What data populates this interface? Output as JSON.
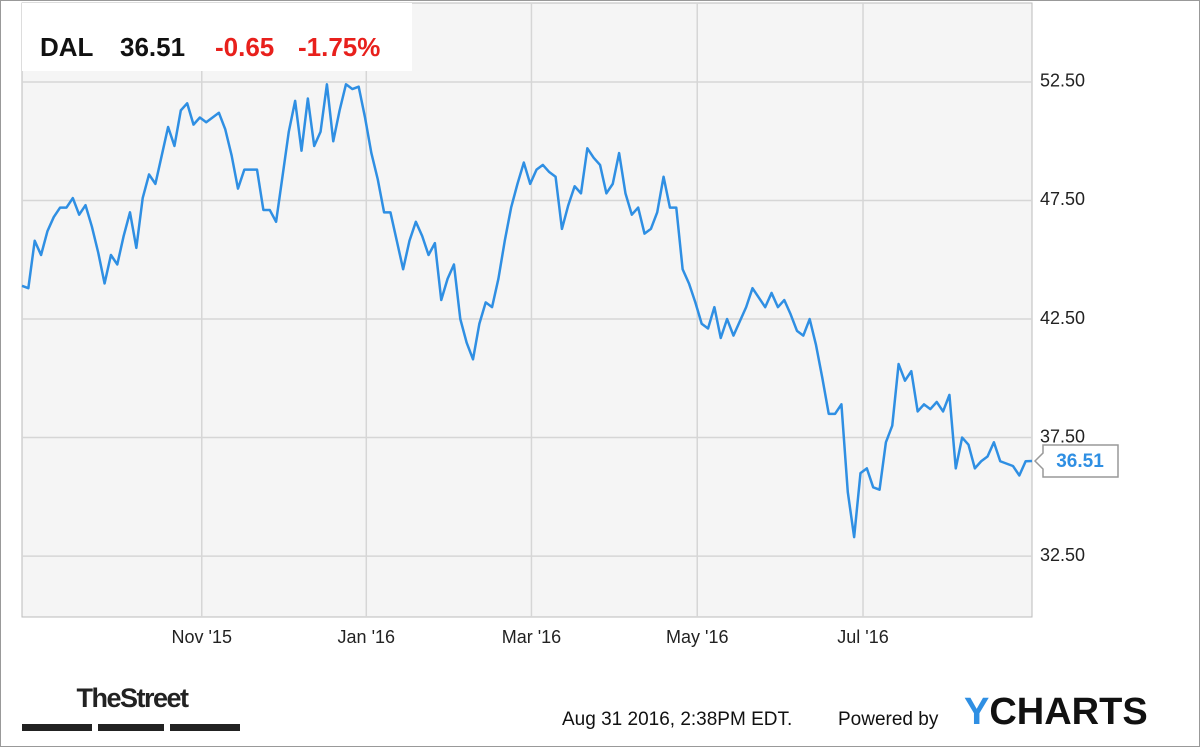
{
  "chart_data": {
    "type": "line",
    "header": {
      "ticker": "DAL",
      "price": "36.51",
      "change": "-0.65",
      "change_percent": "-1.75%"
    },
    "series": [
      {
        "name": "DAL",
        "color": "#2f8fe3",
        "values": [
          43.9,
          43.8,
          45.8,
          45.2,
          46.2,
          46.8,
          47.2,
          47.2,
          47.6,
          46.9,
          47.3,
          46.4,
          45.3,
          44.0,
          45.2,
          44.8,
          46.0,
          47.0,
          45.5,
          47.6,
          48.6,
          48.2,
          49.4,
          50.6,
          49.8,
          51.3,
          51.6,
          50.7,
          51.0,
          50.8,
          51.0,
          51.2,
          50.5,
          49.4,
          48.0,
          48.8,
          48.8,
          48.8,
          47.1,
          47.1,
          46.6,
          48.5,
          50.4,
          51.7,
          49.6,
          51.8,
          49.8,
          50.4,
          52.4,
          50.0,
          51.3,
          52.4,
          52.2,
          52.3,
          51.0,
          49.5,
          48.4,
          47.0,
          47.0,
          45.8,
          44.6,
          45.8,
          46.6,
          46.0,
          45.2,
          45.7,
          43.3,
          44.2,
          44.8,
          42.5,
          41.5,
          40.8,
          42.3,
          43.2,
          43.0,
          44.2,
          45.8,
          47.2,
          48.2,
          49.1,
          48.2,
          48.8,
          49.0,
          48.7,
          48.5,
          46.3,
          47.3,
          48.1,
          47.8,
          49.7,
          49.3,
          49.0,
          47.8,
          48.2,
          49.5,
          47.8,
          46.9,
          47.2,
          46.1,
          46.3,
          47.0,
          48.5,
          47.2,
          47.2,
          44.6,
          44.0,
          43.2,
          42.3,
          42.1,
          43.0,
          41.7,
          42.5,
          41.8,
          42.4,
          43.0,
          43.8,
          43.4,
          43.0,
          43.6,
          43.0,
          43.3,
          42.7,
          42.0,
          41.8,
          42.5,
          41.4,
          40.0,
          38.5,
          38.5,
          38.9,
          35.2,
          33.3,
          36.0,
          36.2,
          35.4,
          35.3,
          37.3,
          38.0,
          40.6,
          39.9,
          40.3,
          38.6,
          38.9,
          38.7,
          39.0,
          38.6,
          39.3,
          36.2,
          37.5,
          37.2,
          36.2,
          36.5,
          36.7,
          37.3,
          36.5,
          36.4,
          36.3,
          35.9,
          36.5,
          36.51
        ]
      }
    ],
    "xlim": [
      0,
      159
    ],
    "xticks": [
      {
        "value": 28.3,
        "label": "Nov '15"
      },
      {
        "value": 54.2,
        "label": "Jan '16"
      },
      {
        "value": 80.2,
        "label": "Mar '16"
      },
      {
        "value": 106.3,
        "label": "May '16"
      },
      {
        "value": 132.4,
        "label": "Jul '16"
      }
    ],
    "ylim": [
      29.93,
      55.83
    ],
    "yticks": [
      {
        "value": 32.5,
        "label": "32.50"
      },
      {
        "value": 37.5,
        "label": "37.50"
      },
      {
        "value": 42.5,
        "label": "42.50"
      },
      {
        "value": 47.5,
        "label": "47.50"
      },
      {
        "value": 52.5,
        "label": "52.50"
      }
    ],
    "grid": true,
    "footer": {
      "source": "TheStreet",
      "timestamp": "Aug 31 2016, 2:38PM EDT.",
      "powered": "Powered by",
      "brand": "YCHARTS"
    }
  }
}
